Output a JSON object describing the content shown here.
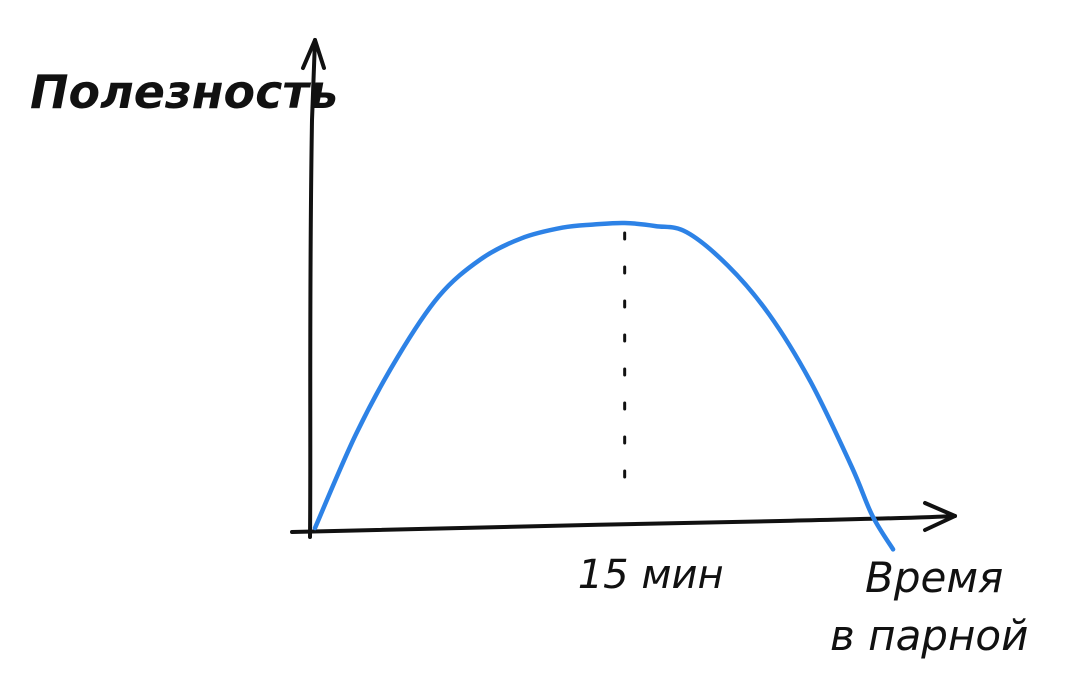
{
  "chart_data": {
    "type": "line",
    "title": "",
    "ylabel": "Полезность",
    "xlabel_lines": [
      "Время",
      "в парной"
    ],
    "x": [
      0,
      2,
      4,
      6,
      8,
      10,
      12,
      13.5,
      15,
      16.5,
      18,
      20,
      22,
      24,
      26,
      27,
      28
    ],
    "values": [
      0,
      0.31,
      0.56,
      0.76,
      0.88,
      0.95,
      0.985,
      0.995,
      1.0,
      0.99,
      0.97,
      0.86,
      0.7,
      0.48,
      0.2,
      0.04,
      -0.07
    ],
    "xlim": [
      0,
      31
    ],
    "ylim": [
      0,
      1.6
    ],
    "grid": false,
    "peak": {
      "x": 15,
      "label": "15 мин"
    },
    "colors": {
      "curve": "#2d82e6",
      "axes": "#111111",
      "marker": "#111111"
    }
  }
}
